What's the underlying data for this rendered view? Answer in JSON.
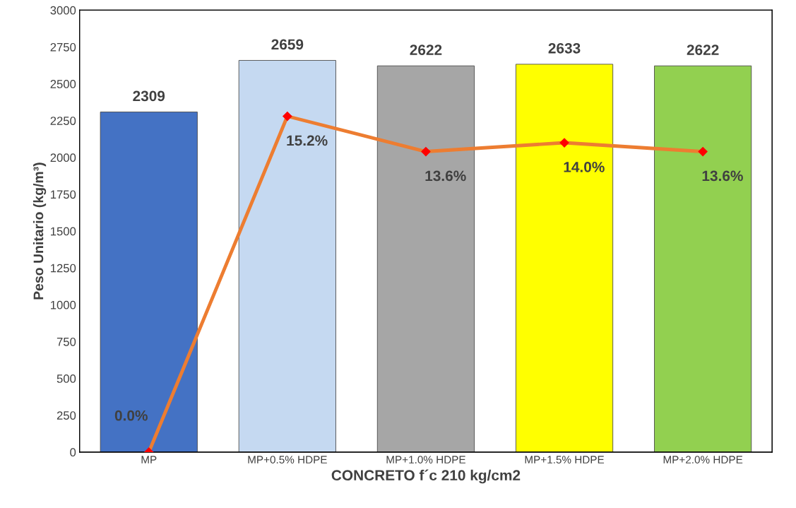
{
  "chart_data": {
    "type": "bar",
    "xlabel": "CONCRETO f´c 210 kg/cm2",
    "ylabel": "Peso Unitario (kg/m³)",
    "categories": [
      "MP",
      "MP+0.5% HDPE",
      "MP+1.0% HDPE",
      "MP+1.5% HDPE",
      "MP+2.0% HDPE"
    ],
    "series": [
      {
        "colors": [
          "#4472c4",
          "#c5d9f1",
          "#a6a6a6",
          "#ffff00",
          "#92d050"
        ],
        "values": [
          2309,
          2659,
          2622,
          2633,
          2622
        ],
        "value_labels": [
          "2309",
          "2659",
          "2622",
          "2633",
          "2622"
        ]
      },
      {
        "type": "line",
        "axis": "y2",
        "color": "#ed7d31",
        "marker": "diamond",
        "values": [
          0.0,
          15.2,
          13.6,
          14.0,
          13.6
        ],
        "value_labels": [
          "0.0%",
          "15.2%",
          "13.6%",
          "14.0%",
          "13.6%"
        ]
      }
    ],
    "ylim": [
      0,
      3000
    ],
    "yticks": [
      0,
      250,
      500,
      750,
      1000,
      1250,
      1500,
      1750,
      2000,
      2250,
      2500,
      2750,
      3000
    ],
    "y2lim": [
      0,
      20
    ],
    "tick_labels": "xy",
    "grid": false
  }
}
